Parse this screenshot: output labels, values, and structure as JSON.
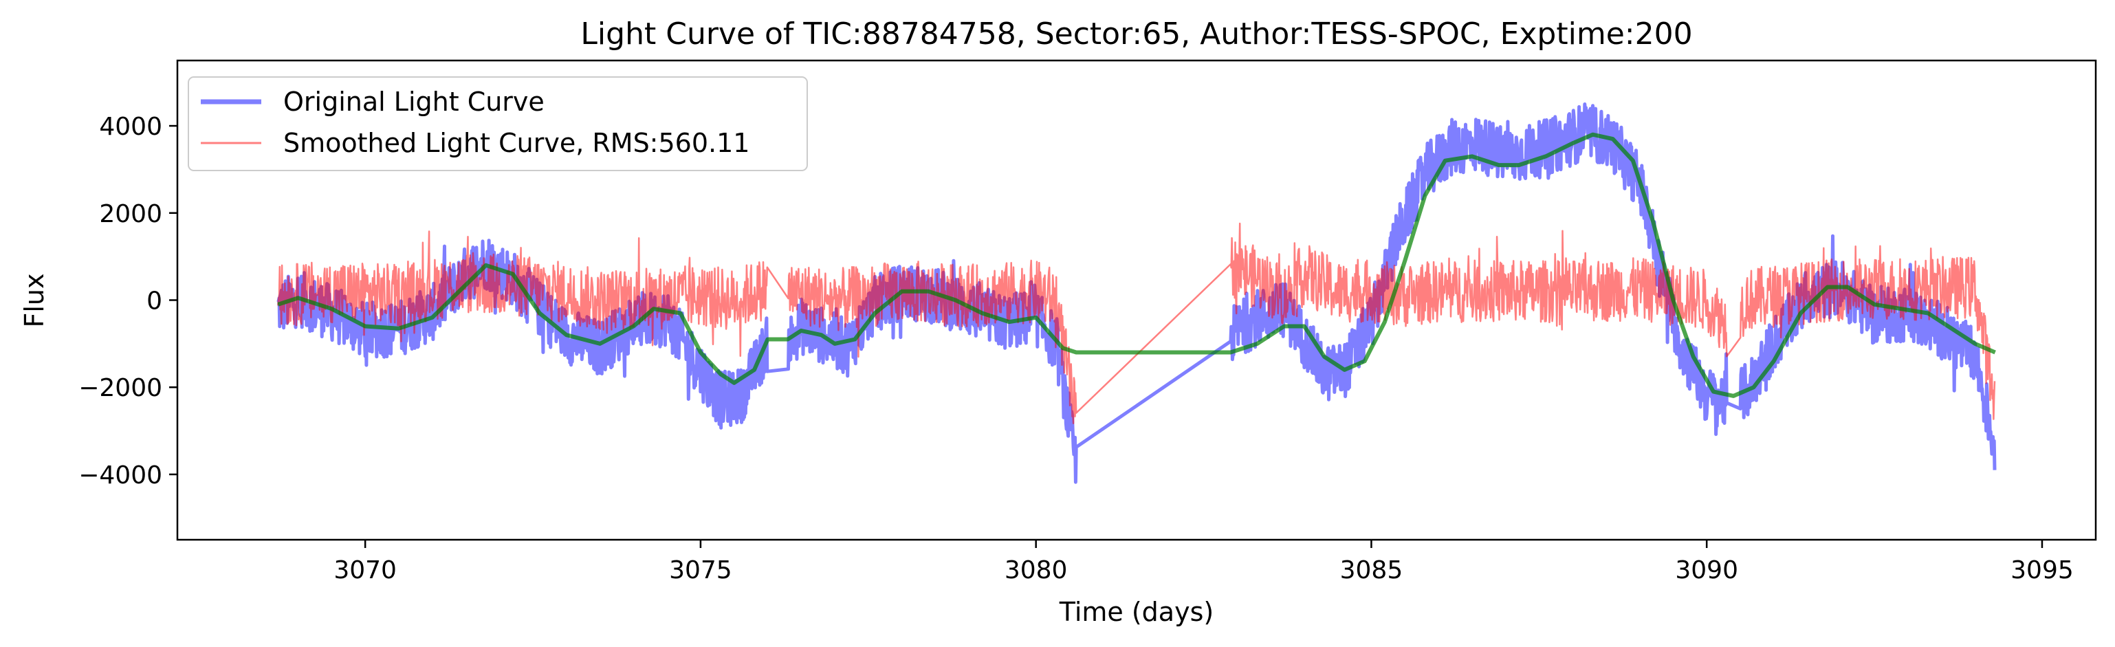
{
  "chart_data": {
    "type": "line",
    "title": "Light Curve of TIC:88784758, Sector:65, Author:TESS-SPOC, Exptime:200",
    "xlabel": "Time (days)",
    "ylabel": "Flux",
    "xlim": [
      3067.2,
      3095.8
    ],
    "ylim": [
      -5500,
      5500
    ],
    "x_ticks": [
      3070,
      3075,
      3080,
      3085,
      3090,
      3095
    ],
    "y_ticks": [
      -4000,
      -2000,
      0,
      2000,
      4000
    ],
    "x_tick_labels": [
      "3070",
      "3075",
      "3080",
      "3085",
      "3090",
      "3095"
    ],
    "y_tick_labels": [
      "−4000",
      "−2000",
      "0",
      "2000",
      "4000"
    ],
    "grid": false,
    "legend": {
      "position": "top-left",
      "entries": [
        "Original Light Curve",
        "Smoothed Light Curve, RMS:560.11"
      ]
    },
    "colors": {
      "original": "#0000ff",
      "smoothed": "#ff0000",
      "trend": "#008000"
    },
    "gaps": [
      [
        3076.0,
        3076.3
      ],
      [
        3080.6,
        3082.9
      ],
      [
        3090.3,
        3090.5
      ]
    ],
    "series": [
      {
        "name": "Original Light Curve",
        "color": "#0000ff",
        "noise_amplitude": 650,
        "x": [
          3068.7,
          3069.0,
          3069.5,
          3070.0,
          3070.5,
          3071.0,
          3071.5,
          3071.8,
          3072.2,
          3072.6,
          3073.0,
          3073.5,
          3074.0,
          3074.5,
          3075.0,
          3075.3,
          3075.6,
          3076.0,
          3076.3,
          3076.5,
          3076.8,
          3077.2,
          3077.6,
          3078.0,
          3078.5,
          3079.0,
          3079.5,
          3080.0,
          3080.3,
          3080.6,
          3082.9,
          3083.3,
          3083.7,
          3084.0,
          3084.3,
          3084.6,
          3085.0,
          3085.4,
          3085.8,
          3086.2,
          3086.6,
          3087.0,
          3087.4,
          3087.8,
          3088.2,
          3088.6,
          3089.0,
          3089.3,
          3089.6,
          3090.0,
          3090.3,
          3090.6,
          3091.0,
          3091.5,
          3092.0,
          3092.5,
          3093.0,
          3093.5,
          3094.0,
          3094.3
        ],
        "y": [
          -200,
          50,
          -300,
          -700,
          -650,
          -300,
          600,
          900,
          500,
          -200,
          -800,
          -1100,
          -500,
          -400,
          -1600,
          -2300,
          -2200,
          -1000,
          -1000,
          -600,
          -800,
          -1100,
          -100,
          200,
          100,
          -200,
          -500,
          -400,
          -1000,
          -3800,
          -800,
          -400,
          -200,
          -900,
          -1700,
          -1600,
          -500,
          1500,
          2900,
          3500,
          3600,
          3300,
          3400,
          3600,
          3900,
          3600,
          2700,
          800,
          -1000,
          -2200,
          -2300,
          -2100,
          -1000,
          100,
          300,
          -400,
          -300,
          -700,
          -1300,
          -3400
        ]
      },
      {
        "name": "Smoothed Light Curve, RMS:560.11",
        "color": "#ff0000",
        "noise_amplitude": 720,
        "x": [
          3068.7,
          3069.5,
          3070.5,
          3071.5,
          3072.5,
          3073.5,
          3074.5,
          3075.0,
          3075.5,
          3076.0,
          3076.3,
          3077.0,
          3078.0,
          3079.0,
          3080.0,
          3080.3,
          3080.6,
          3082.9,
          3083.3,
          3083.7,
          3084.0,
          3084.5,
          3085.0,
          3085.5,
          3086.0,
          3087.0,
          3088.0,
          3089.0,
          3090.0,
          3090.3,
          3090.6,
          3091.0,
          3092.0,
          3093.0,
          3094.0,
          3094.3
        ],
        "y": [
          100,
          200,
          100,
          400,
          300,
          0,
          50,
          100,
          0,
          300,
          200,
          0,
          200,
          100,
          200,
          0,
          -2800,
          800,
          500,
          100,
          600,
          200,
          200,
          100,
          200,
          200,
          200,
          250,
          0,
          -600,
          0,
          100,
          250,
          250,
          300,
          -2400
        ]
      },
      {
        "name": "",
        "color": "#008000",
        "noise_amplitude": 0,
        "x": [
          3068.7,
          3069.0,
          3069.5,
          3070.0,
          3070.5,
          3071.0,
          3071.4,
          3071.8,
          3072.2,
          3072.6,
          3073.0,
          3073.5,
          3074.0,
          3074.3,
          3074.7,
          3075.0,
          3075.3,
          3075.5,
          3075.8,
          3076.0,
          3076.3,
          3076.5,
          3076.8,
          3077.0,
          3077.3,
          3077.6,
          3078.0,
          3078.4,
          3078.8,
          3079.2,
          3079.6,
          3080.0,
          3080.4,
          3080.6,
          3082.9,
          3083.3,
          3083.7,
          3084.0,
          3084.3,
          3084.6,
          3084.9,
          3085.2,
          3085.5,
          3085.8,
          3086.1,
          3086.5,
          3086.9,
          3087.2,
          3087.6,
          3088.0,
          3088.3,
          3088.6,
          3088.9,
          3089.2,
          3089.5,
          3089.8,
          3090.1,
          3090.4,
          3090.7,
          3091.0,
          3091.4,
          3091.8,
          3092.1,
          3092.5,
          3092.9,
          3093.3,
          3093.7,
          3094.0,
          3094.3
        ],
        "y": [
          -100,
          50,
          -200,
          -600,
          -650,
          -400,
          200,
          800,
          600,
          -300,
          -800,
          -1000,
          -600,
          -200,
          -300,
          -1200,
          -1700,
          -1900,
          -1600,
          -900,
          -900,
          -700,
          -800,
          -1000,
          -900,
          -300,
          200,
          200,
          0,
          -300,
          -500,
          -400,
          -1100,
          -1200,
          -1200,
          -1000,
          -600,
          -600,
          -1300,
          -1600,
          -1400,
          -500,
          900,
          2400,
          3200,
          3300,
          3100,
          3100,
          3300,
          3600,
          3800,
          3700,
          3200,
          1800,
          0,
          -1300,
          -2100,
          -2200,
          -2000,
          -1400,
          -300,
          300,
          300,
          -100,
          -200,
          -300,
          -700,
          -1000,
          -1200
        ]
      }
    ]
  }
}
